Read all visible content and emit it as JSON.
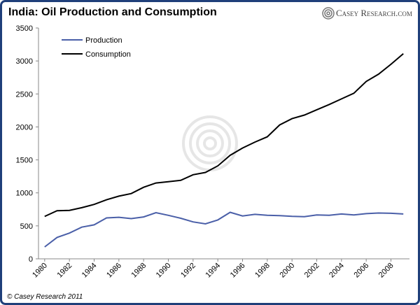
{
  "chart_data": {
    "type": "line",
    "title": "India: Oil Production and Consumption",
    "logo": "Casey Research.com",
    "footer": "© Casey Research 2011",
    "x": [
      1980,
      1981,
      1982,
      1983,
      1984,
      1985,
      1986,
      1987,
      1988,
      1989,
      1990,
      1991,
      1992,
      1993,
      1994,
      1995,
      1996,
      1997,
      1998,
      1999,
      2000,
      2001,
      2002,
      2003,
      2004,
      2005,
      2006,
      2007,
      2008,
      2009
    ],
    "series": [
      {
        "name": "Production",
        "color": "#4a5fa8",
        "values": [
          180,
          325,
          390,
          480,
          515,
          620,
          630,
          610,
          635,
          700,
          660,
          615,
          560,
          530,
          590,
          705,
          650,
          675,
          660,
          655,
          645,
          640,
          665,
          660,
          680,
          665,
          685,
          695,
          690,
          680
        ]
      },
      {
        "name": "Consumption",
        "color": "#000000",
        "values": [
          643,
          730,
          735,
          775,
          825,
          895,
          950,
          990,
          1085,
          1150,
          1170,
          1190,
          1275,
          1310,
          1410,
          1570,
          1680,
          1770,
          1850,
          2030,
          2125,
          2180,
          2260,
          2340,
          2425,
          2510,
          2690,
          2800,
          2950,
          3110
        ]
      }
    ],
    "xlim": [
      1979.5,
      2009.5
    ],
    "xticks": [
      1980,
      1982,
      1984,
      1986,
      1988,
      1990,
      1992,
      1994,
      1996,
      1998,
      2000,
      2002,
      2004,
      2006,
      2008
    ],
    "ylim": [
      0,
      3500
    ],
    "yticks": [
      0,
      500,
      1000,
      1500,
      2000,
      2500,
      3000,
      3500
    ],
    "grid": false,
    "legend": "top-left"
  }
}
